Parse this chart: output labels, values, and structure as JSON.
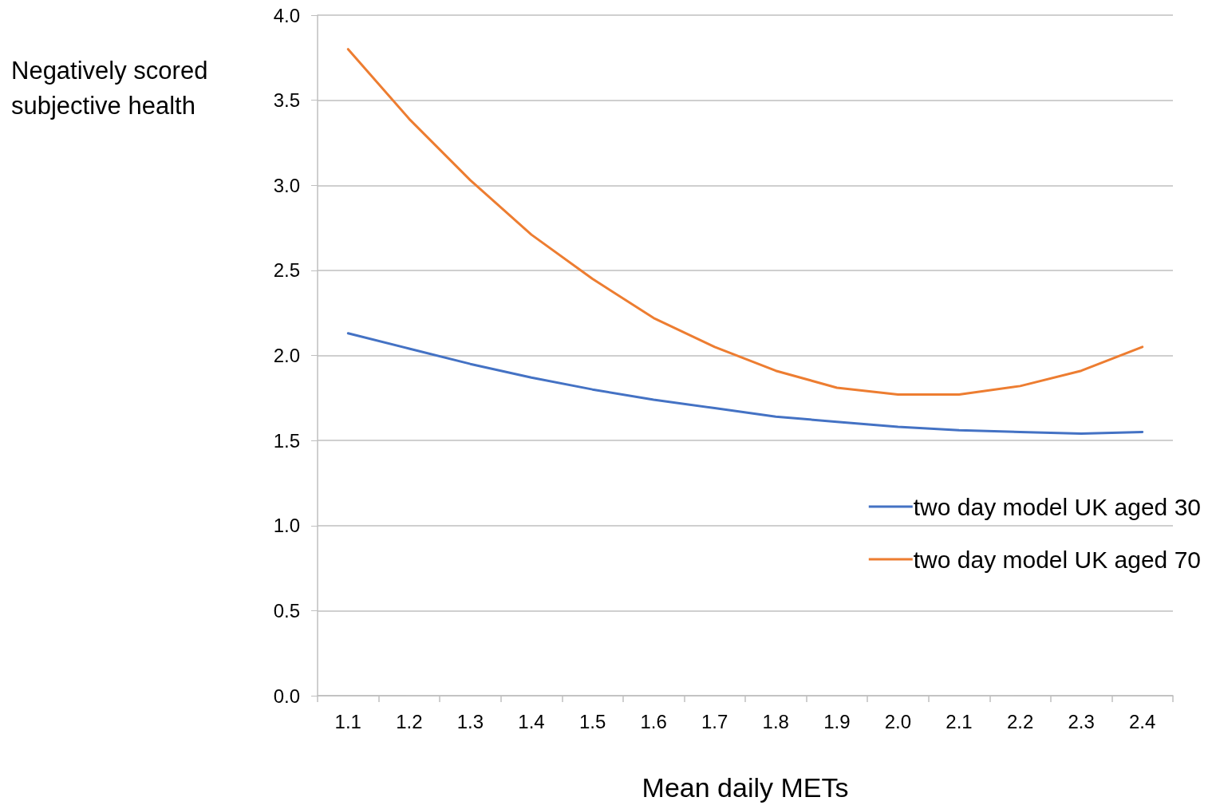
{
  "chart_data": {
    "type": "line",
    "xlabel": "Mean daily METs",
    "ylabel": "Negatively scored subjective health",
    "categories": [
      "1.1",
      "1.2",
      "1.3",
      "1.4",
      "1.5",
      "1.6",
      "1.7",
      "1.8",
      "1.9",
      "2.0",
      "2.1",
      "2.2",
      "2.3",
      "2.4"
    ],
    "series": [
      {
        "name": "two day model UK aged 30",
        "color": "#4472c4",
        "values": [
          2.13,
          2.04,
          1.95,
          1.87,
          1.8,
          1.74,
          1.69,
          1.64,
          1.61,
          1.58,
          1.56,
          1.55,
          1.54,
          1.55
        ]
      },
      {
        "name": "two day model UK aged 70",
        "color": "#ed7d31",
        "values": [
          3.8,
          3.39,
          3.03,
          2.71,
          2.45,
          2.22,
          2.05,
          1.91,
          1.81,
          1.77,
          1.77,
          1.82,
          1.91,
          2.05
        ]
      }
    ],
    "ylim": [
      0,
      4
    ],
    "yticks": [
      {
        "value": 0,
        "label": "0.0"
      },
      0.5,
      {
        "value": 1,
        "label": "1.0"
      },
      1.5,
      {
        "value": 2,
        "label": "2.0"
      },
      2.5,
      {
        "value": 3,
        "label": "3.0"
      },
      3.5,
      {
        "value": 4,
        "label": "4.0"
      }
    ],
    "grid": "y",
    "legend": "right",
    "marker": "none",
    "line_style": "solid"
  }
}
